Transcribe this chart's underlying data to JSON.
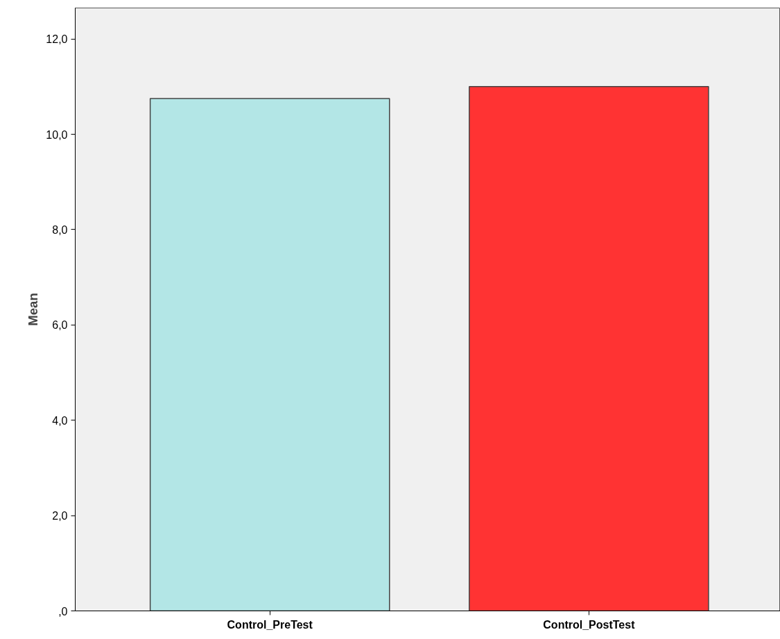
{
  "chart_data": {
    "type": "bar",
    "ylabel": "Mean",
    "categories": [
      "Control_PreTest",
      "Control_PostTest"
    ],
    "values": [
      10.75,
      11.0
    ],
    "colors": [
      "#b3e6e6",
      "#ff3333"
    ],
    "ylim": [
      0,
      12.65
    ],
    "yticks": [
      {
        "value": 0,
        "label": ",0"
      },
      {
        "value": 2,
        "label": "2,0"
      },
      {
        "value": 4,
        "label": "4,0"
      },
      {
        "value": 6,
        "label": "6,0"
      },
      {
        "value": 8,
        "label": "8,0"
      },
      {
        "value": 10,
        "label": "10,0"
      },
      {
        "value": 12,
        "label": "12,0"
      }
    ],
    "grid": false
  }
}
